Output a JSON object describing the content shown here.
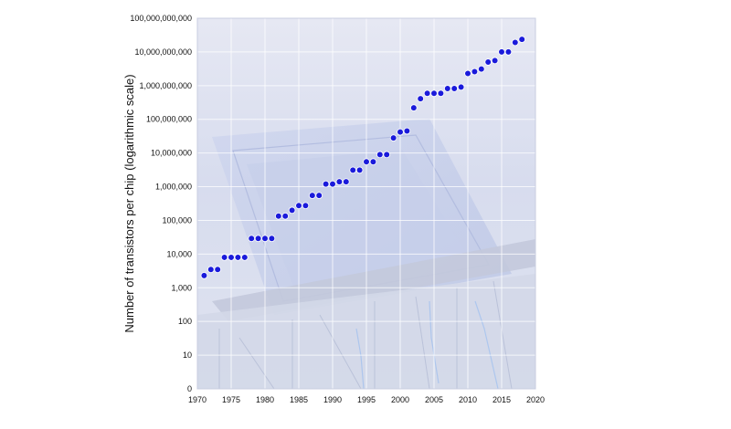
{
  "chart_data": {
    "type": "scatter",
    "title": "",
    "xlabel": "",
    "ylabel": "Number of transistors per chip (logarithmic scale)",
    "xlim": [
      1970,
      2020
    ],
    "ylim_log10": [
      0,
      11
    ],
    "y_scale": "log",
    "grid": true,
    "x_ticks": [
      "1970",
      "1975",
      "1980",
      "1985",
      "1990",
      "1995",
      "2000",
      "2005",
      "2010",
      "2015",
      "2020"
    ],
    "y_ticks": [
      "0",
      "10",
      "100",
      "1,000",
      "10,000",
      "100,000",
      "1,000,000",
      "10,000,000",
      "100,000,000",
      "1,000,000,000",
      "10,000,000,000",
      "100,000,000,000"
    ],
    "marker_color": "#1a1adb",
    "series": [
      {
        "x": [
          1971,
          1972,
          1973,
          1974,
          1975,
          1976,
          1977,
          1978,
          1979,
          1980,
          1981,
          1982,
          1983,
          1984,
          1985,
          1986,
          1987,
          1988,
          1989,
          1990,
          1991,
          1992,
          1993,
          1994,
          1995,
          1996,
          1997,
          1998,
          1999,
          2000,
          2001,
          2002,
          2003,
          2004,
          2005,
          2006,
          2007,
          2008,
          2009,
          2010,
          2011,
          2012,
          2013,
          2014,
          2015,
          2016,
          2017,
          2018
        ],
        "y": [
          2300,
          3500,
          3500,
          8000,
          8000,
          8000,
          8000,
          29000,
          29000,
          29000,
          29000,
          134000,
          134000,
          200000,
          275000,
          275000,
          550000,
          550000,
          1200000,
          1200000,
          1400000,
          1400000,
          3100000,
          3100000,
          5500000,
          5500000,
          9000000,
          9000000,
          28000000,
          42000000,
          45000000,
          220000000,
          410000000,
          590000000,
          590000000,
          590000000,
          820000000,
          820000000,
          904000000,
          2300000000,
          2600000000,
          3100000000,
          5000000000,
          5560000000,
          10000000000,
          10000000000,
          19200000000,
          23600000000
        ]
      }
    ]
  }
}
